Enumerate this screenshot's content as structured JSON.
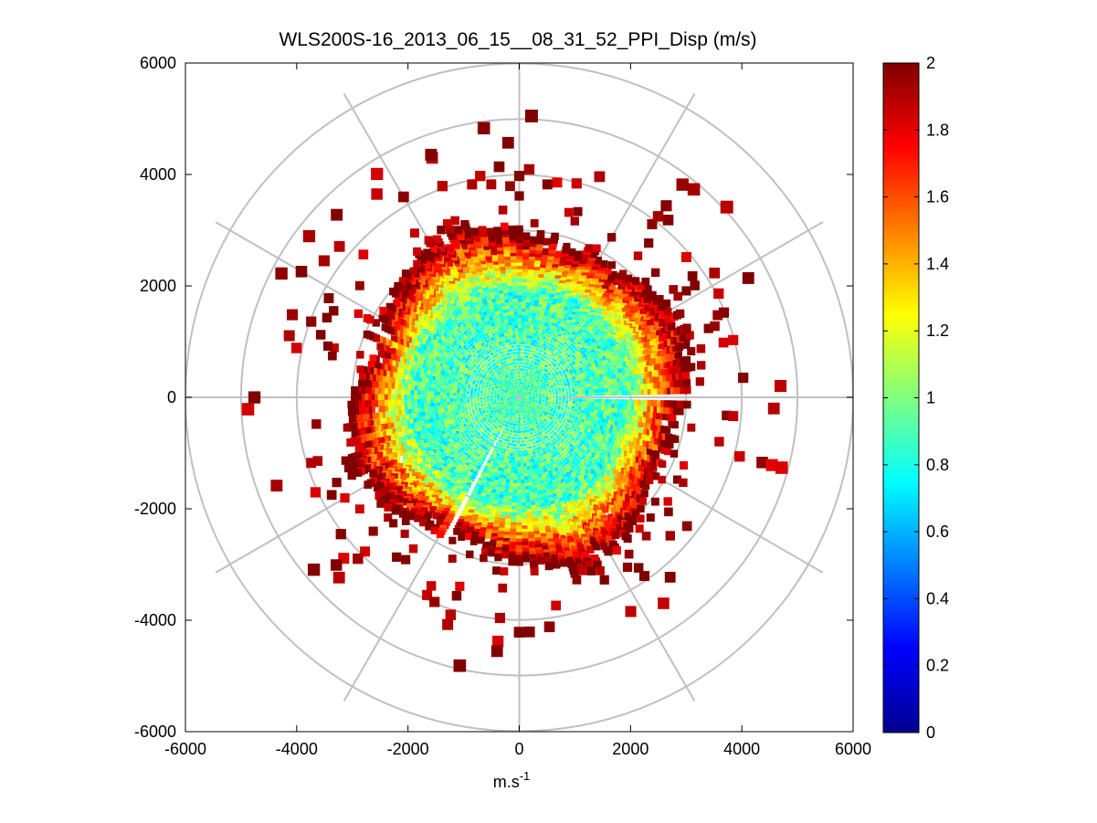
{
  "chart_data": {
    "type": "heatmap",
    "subtype": "polar-ppi",
    "title": "WLS200S-16_2013_06_15__08_31_52_PPI_Disp (m/s)",
    "xlabel": "m.s",
    "xlabel_superscript": "-1",
    "ylabel": "",
    "xlim": [
      -6000,
      6000
    ],
    "ylim": [
      -6000,
      6000
    ],
    "x_ticks": [
      -6000,
      -4000,
      -2000,
      0,
      2000,
      4000,
      6000
    ],
    "y_ticks": [
      -6000,
      -4000,
      -2000,
      0,
      2000,
      4000,
      6000
    ],
    "x_tick_labels": [
      "-6000",
      "-4000",
      "-2000",
      "0",
      "2000",
      "4000",
      "6000"
    ],
    "y_tick_labels": [
      "-6000",
      "-4000",
      "-2000",
      "0",
      "2000",
      "4000",
      "6000"
    ],
    "polar_grid": {
      "ring_radii": [
        1000,
        2000,
        3000,
        4000,
        5000,
        6000
      ],
      "spoke_angles_deg": [
        0,
        30,
        60,
        90,
        120,
        150,
        180,
        210,
        240,
        270,
        300,
        330
      ]
    },
    "colorbar": {
      "colormap": "jet",
      "range": [
        0,
        2
      ],
      "ticks": [
        0,
        0.2,
        0.4,
        0.6,
        0.8,
        1,
        1.2,
        1.4,
        1.6,
        1.8,
        2
      ],
      "tick_labels": [
        "0",
        "0.2",
        "0.4",
        "0.6",
        "0.8",
        "1",
        "1.2",
        "1.4",
        "1.6",
        "1.8",
        "2"
      ]
    },
    "field_description": {
      "inner_radius_m": 2000,
      "inner_value_mean": 0.9,
      "edge_radius_m": 3000,
      "edge_value": 2.0,
      "max_range_m": 5100,
      "gap_azimuths_deg": [
        0,
        242
      ]
    }
  }
}
